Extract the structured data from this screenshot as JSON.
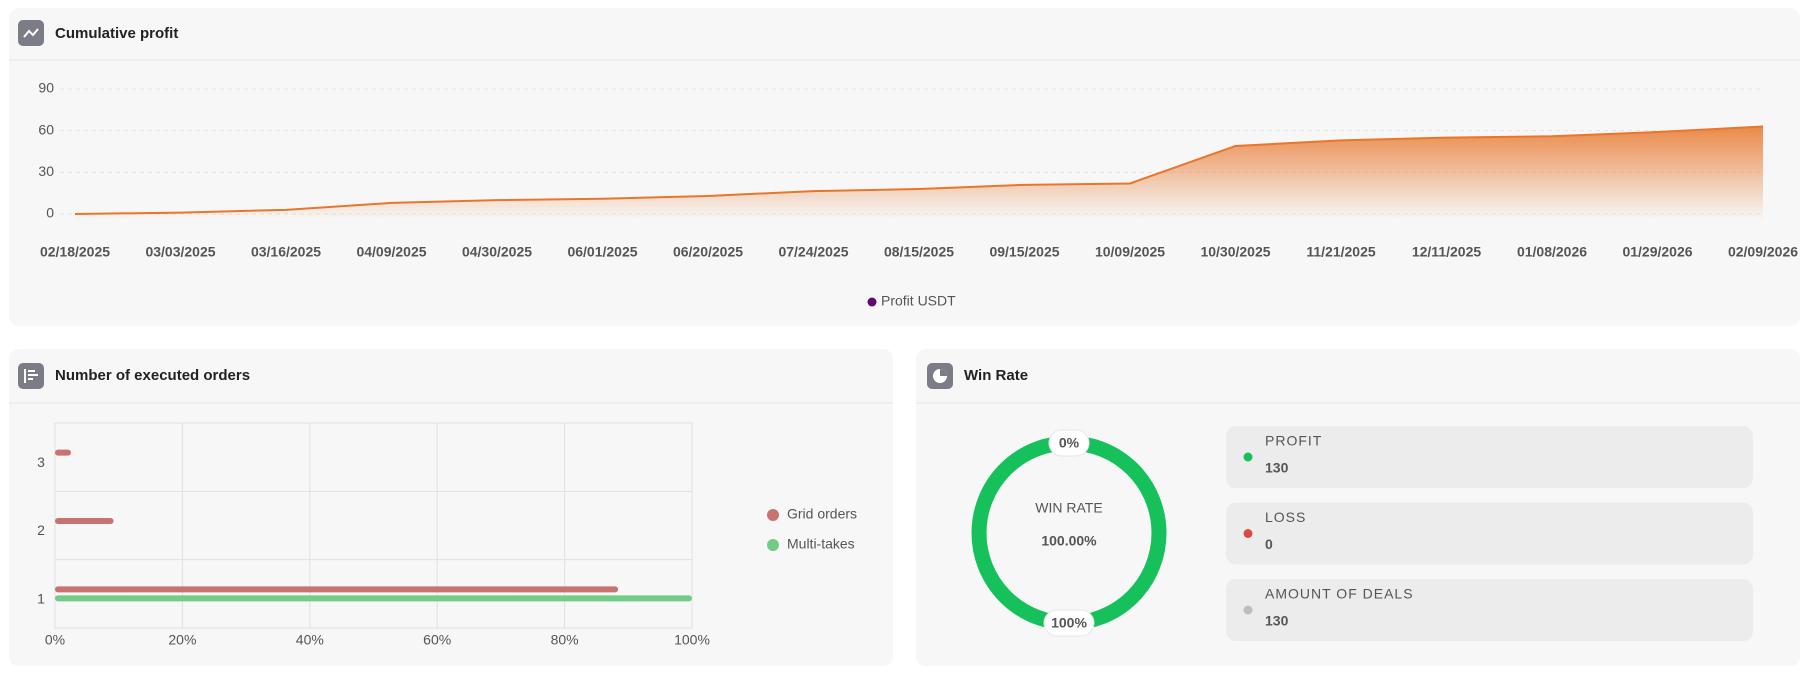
{
  "chart_data": [
    {
      "type": "line",
      "title": "Cumulative profit",
      "x": [
        "02/18/2025",
        "03/03/2025",
        "03/16/2025",
        "04/09/2025",
        "04/30/2025",
        "06/01/2025",
        "06/20/2025",
        "07/24/2025",
        "08/15/2025",
        "09/15/2025",
        "10/09/2025",
        "10/30/2025",
        "11/21/2025",
        "12/11/2025",
        "01/08/2026",
        "01/29/2026",
        "02/09/2026"
      ],
      "series": [
        {
          "name": "Profit USDT",
          "color": "#e8762b",
          "values": [
            0,
            1,
            3,
            8,
            10,
            11,
            13,
            16.5,
            18,
            21,
            22,
            49,
            53,
            55,
            56,
            59,
            63
          ]
        }
      ],
      "legend_color": "#5c0b72",
      "ylim": [
        0,
        90
      ],
      "yticks": [
        0,
        30,
        60,
        90
      ],
      "grid": true
    },
    {
      "type": "hbar",
      "title": "Number of executed orders",
      "categories": [
        "1",
        "2",
        "3"
      ],
      "series": [
        {
          "name": "Grid orders",
          "color": "#c87272",
          "values": [
            88.4,
            9.2,
            2.5
          ]
        },
        {
          "name": "Multi-takes",
          "color": "#72cc88",
          "values": [
            100,
            null,
            null
          ]
        }
      ],
      "xlim": [
        0,
        100
      ],
      "xticks": [
        {
          "value": 0,
          "label": "0%"
        },
        {
          "value": 20,
          "label": "20%"
        },
        {
          "value": 40,
          "label": "40%"
        },
        {
          "value": 60,
          "label": "60%"
        },
        {
          "value": 80,
          "label": "80%"
        },
        {
          "value": 100,
          "label": "100%"
        }
      ],
      "grid": true
    },
    {
      "type": "donut",
      "title": "Win Rate",
      "center_label": "WIN RATE",
      "center_value": "100.00%",
      "ring_labels": [
        "0%",
        "100%"
      ],
      "categories": [
        "PROFIT",
        "LOSS"
      ],
      "values": [
        130,
        0
      ],
      "colors": [
        "#16c05a",
        "#e04848"
      ],
      "total_label": "AMOUNT OF DEALS",
      "total": 130,
      "total_color": "#bdbdbd"
    }
  ]
}
